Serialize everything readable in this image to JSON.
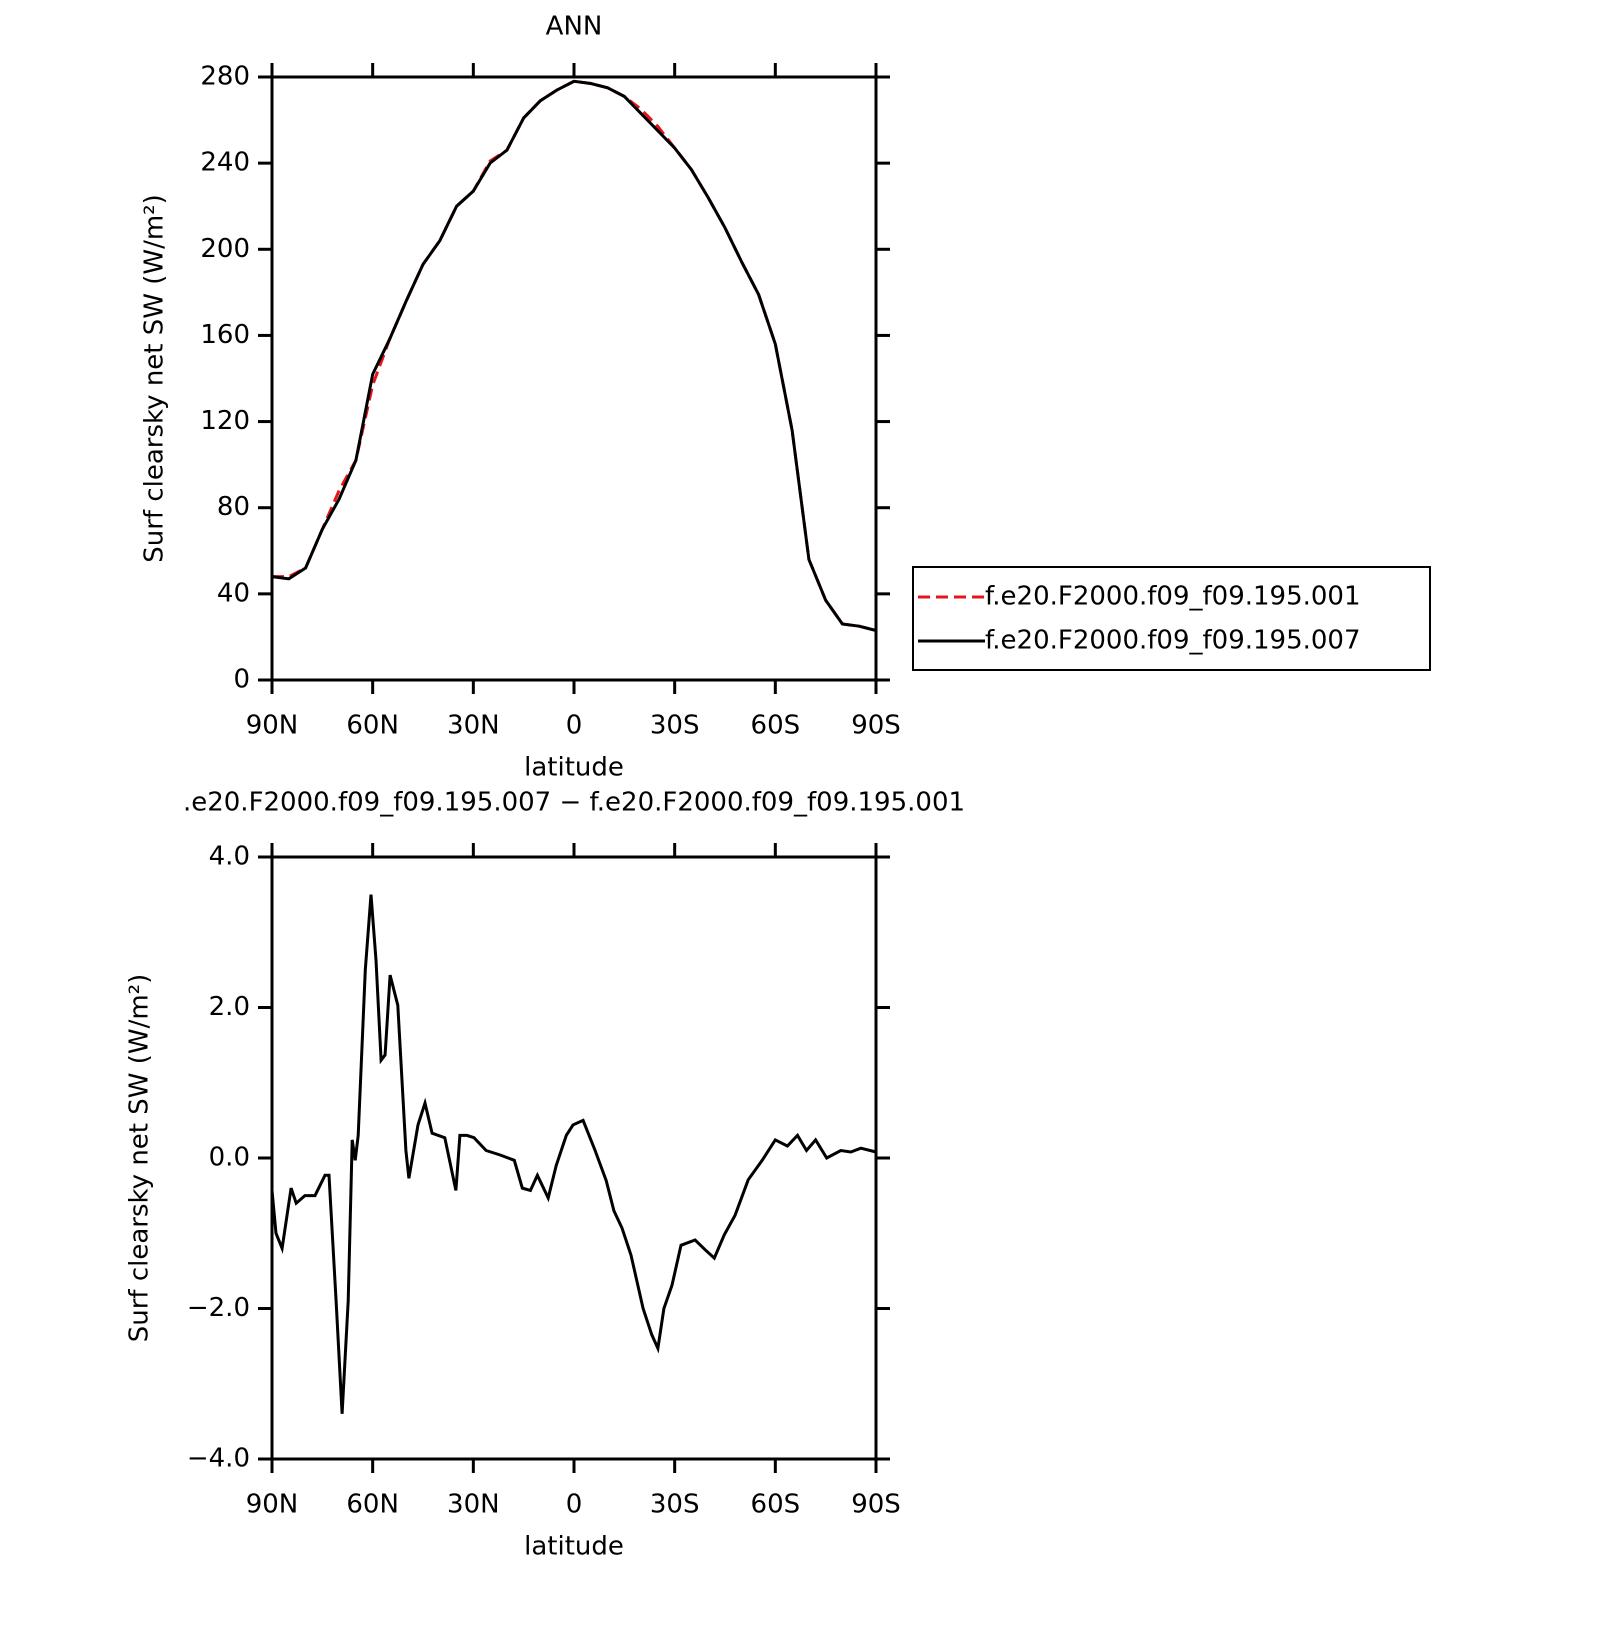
{
  "chart_data": [
    {
      "type": "line",
      "title": "ANN",
      "xlabel": "latitude",
      "ylabel": "Surf clearsky net SW (W/m²)",
      "xlim": [
        90,
        -90
      ],
      "ylim": [
        0,
        280
      ],
      "xticks": [
        {
          "value": 90,
          "label": "90N"
        },
        {
          "value": 60,
          "label": "60N"
        },
        {
          "value": 30,
          "label": "30N"
        },
        0,
        {
          "value": -30,
          "label": "30S"
        },
        {
          "value": -60,
          "label": "60S"
        },
        {
          "value": -90,
          "label": "90S"
        }
      ],
      "yticks": [
        0,
        40,
        80,
        120,
        160,
        200,
        240,
        280
      ],
      "legend": "outside-right",
      "x": [
        90,
        85,
        80,
        75,
        70,
        65,
        60,
        55,
        50,
        45,
        40,
        35,
        30,
        25,
        20,
        15,
        10,
        5,
        0,
        -5,
        -10,
        -15,
        -20,
        -25,
        -30,
        -35,
        -40,
        -45,
        -50,
        -55,
        -60,
        -65,
        -70,
        -75,
        -80,
        -85,
        -90
      ],
      "series": [
        {
          "name": "f.e20.F2000.f09_f09.195.001",
          "color": "#e8141c",
          "dashed": true,
          "values": [
            48,
            48,
            52,
            70,
            88,
            102,
            137,
            158,
            176,
            193,
            204,
            220,
            227,
            241,
            246,
            261,
            269,
            274,
            278,
            277,
            275,
            271,
            265,
            257,
            247,
            237,
            224,
            210,
            194,
            179,
            156,
            116,
            56,
            37,
            26,
            25,
            23
          ]
        },
        {
          "name": "f.e20.F2000.f09_f09.195.007",
          "color": "#000000",
          "dashed": false,
          "values": [
            48,
            47,
            52,
            70,
            84,
            102,
            142,
            158,
            176,
            193,
            204,
            220,
            227,
            240,
            246,
            261,
            269,
            274,
            278,
            277,
            275,
            271,
            263,
            255,
            247,
            237,
            224,
            210,
            194,
            179,
            156,
            116,
            56,
            37,
            26,
            25,
            23
          ]
        }
      ]
    },
    {
      "type": "line",
      "title": ".e20.F2000.f09_f09.195.007 − f.e20.F2000.f09_f09.195.001",
      "xlabel": "latitude",
      "ylabel": "Surf clearsky net SW (W/m²)",
      "xlim": [
        90,
        -90
      ],
      "ylim": [
        -4,
        4
      ],
      "xticks": [
        {
          "value": 90,
          "label": "90N"
        },
        {
          "value": 60,
          "label": "60N"
        },
        {
          "value": 30,
          "label": "30N"
        },
        0,
        {
          "value": -30,
          "label": "30S"
        },
        {
          "value": -60,
          "label": "60S"
        },
        {
          "value": -90,
          "label": "90S"
        }
      ],
      "yticks": [
        {
          "value": -4,
          "label": "−4.0"
        },
        {
          "value": -2,
          "label": "−2.0"
        },
        {
          "value": 0,
          "label": "0.0"
        },
        {
          "value": 2,
          "label": "2.0"
        },
        {
          "value": 4,
          "label": "4.0"
        }
      ],
      "x": [
        90,
        88.8,
        87.0,
        84.3,
        82.8,
        80.2,
        77.2,
        74.2,
        73.0,
        70.9,
        69.1,
        67.3,
        66.1,
        65.2,
        64.3,
        62.2,
        60.5,
        59.0,
        57.5,
        56.3,
        54.8,
        52.5,
        50.1,
        49.2,
        46.5,
        44.4,
        42.3,
        38.5,
        35.2,
        34.0,
        31.9,
        29.8,
        26.2,
        22.0,
        17.8,
        15.4,
        13.0,
        10.9,
        7.7,
        5.3,
        2.3,
        0.3,
        -2.7,
        -6.3,
        -9.6,
        -11.9,
        -14.3,
        -17.0,
        -20.6,
        -23.2,
        -25.0,
        -26.8,
        -29.2,
        -31.9,
        -36.1,
        -39.1,
        -41.8,
        -44.8,
        -48.0,
        -51.9,
        -56.1,
        -60.0,
        -63.6,
        -66.6,
        -69.3,
        -72.0,
        -75.3,
        -79.5,
        -82.5,
        -85.5,
        -90
      ],
      "series": [
        {
          "color": "#000000",
          "dashed": false,
          "values": [
            -0.43,
            -1.0,
            -1.2,
            -0.4,
            -0.6,
            -0.5,
            -0.5,
            -0.23,
            -0.23,
            -1.9,
            -3.4,
            -1.9,
            0.24,
            -0.03,
            0.3,
            2.5,
            3.5,
            2.63,
            1.3,
            1.37,
            2.43,
            2.03,
            0.1,
            -0.27,
            0.44,
            0.73,
            0.33,
            0.27,
            -0.43,
            0.3,
            0.3,
            0.27,
            0.1,
            0.04,
            -0.03,
            -0.4,
            -0.43,
            -0.23,
            -0.53,
            -0.1,
            0.3,
            0.44,
            0.5,
            0.1,
            -0.3,
            -0.7,
            -0.93,
            -1.29,
            -2.0,
            -2.35,
            -2.53,
            -2.0,
            -1.69,
            -1.16,
            -1.09,
            -1.22,
            -1.33,
            -1.02,
            -0.76,
            -0.29,
            -0.03,
            0.24,
            0.16,
            0.3,
            0.1,
            0.24,
            0,
            0.1,
            0.08,
            0.13,
            0.08
          ]
        }
      ]
    }
  ]
}
